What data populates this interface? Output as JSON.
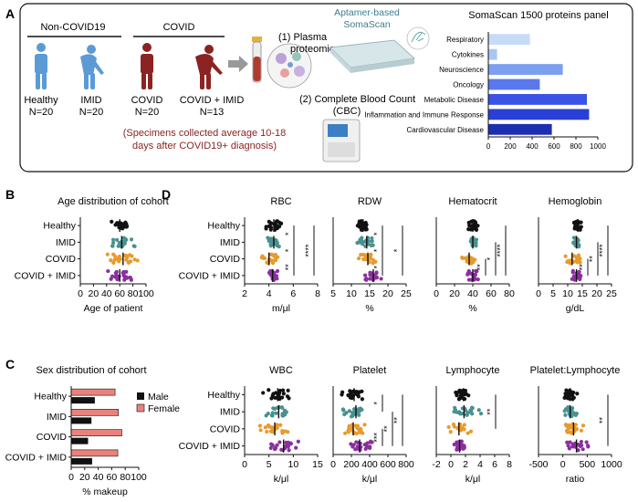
{
  "panel_a": {
    "label": "A",
    "non_covid_header": "Non-COVID19",
    "covid_header": "COVID",
    "groups": [
      {
        "name": "Healthy",
        "n": "N=20",
        "color": "#5b9bd5"
      },
      {
        "name": "IMID",
        "n": "N=20",
        "color": "#5b9bd5"
      },
      {
        "name": "COVID",
        "n": "N=20",
        "color": "#8b2323"
      },
      {
        "name": "COVID + IMID",
        "n": "N=13",
        "color": "#8b2323"
      }
    ],
    "specimen_note_1": "(Specimens collected average 10-18",
    "specimen_note_2": "days after COVID19+ diagnosis)",
    "step1_line1": "(1) Plasma",
    "step1_line2": "proteomics",
    "step2_line1": "(2) Complete Blood Count",
    "step2_line2": "(CBC)",
    "aptamer_line1": "Aptamer-based",
    "aptamer_line2": "SomaScan",
    "accent_red": "#8b2323",
    "accent_blue": "#5b9bd5"
  },
  "panel_b": {
    "label": "B"
  },
  "panel_c": {
    "label": "C"
  },
  "panel_d": {
    "label": "D"
  },
  "chart_data": [
    {
      "id": "somascan",
      "type": "bar",
      "orientation": "horizontal",
      "title": "SomaScan 1500 proteins panel",
      "categories": [
        "Respiratory",
        "Cytokines",
        "Neuroscience",
        "Oncology",
        "Metabolic Disease",
        "Inflammation and Immune Response",
        "Cardiovascular Disease"
      ],
      "values": [
        380,
        80,
        680,
        470,
        900,
        920,
        580
      ],
      "colors": [
        "#c6dbf5",
        "#a9c6f2",
        "#7d9ff0",
        "#5a78ee",
        "#3b52e6",
        "#2a3fd6",
        "#1c2fb0"
      ],
      "xlim": [
        0,
        1000
      ],
      "xticks": [
        "0",
        "200",
        "400",
        "600",
        "800",
        "1000"
      ]
    },
    {
      "id": "age",
      "type": "scatter",
      "title": "Age distribution of cohort",
      "xlabel": "Age of patient",
      "categories": [
        "Healthy",
        "IMID",
        "COVID",
        "COVID + IMID"
      ],
      "means": [
        60,
        63,
        65,
        60
      ],
      "spreads": [
        18,
        20,
        24,
        23
      ],
      "xlim": [
        0,
        100
      ],
      "xticks": [
        "0",
        "20",
        "40",
        "60",
        "80",
        "100"
      ],
      "colors": [
        "#111111",
        "#4a9090",
        "#e89a2c",
        "#8a2f9e"
      ]
    },
    {
      "id": "sex",
      "type": "bar",
      "orientation": "horizontal",
      "title": "Sex distribution of cohort",
      "xlabel": "% makeup",
      "categories": [
        "Healthy",
        "IMID",
        "COVID",
        "COVID + IMID"
      ],
      "series": [
        {
          "name": "Male",
          "values": [
            35,
            30,
            25,
            31
          ],
          "color": "#111111"
        },
        {
          "name": "Female",
          "values": [
            65,
            70,
            75,
            69
          ],
          "color": "#e9827c"
        }
      ],
      "xlim": [
        0,
        100
      ],
      "xticks": [
        "0",
        "20",
        "40",
        "60",
        "80",
        "100"
      ]
    },
    {
      "id": "rbc",
      "type": "scatter",
      "title": "RBC",
      "xlabel": "m/μl",
      "categories": [
        "Healthy",
        "IMID",
        "COVID",
        "COVID + IMID"
      ],
      "means": [
        4.4,
        4.4,
        4.0,
        4.3
      ],
      "spreads": [
        0.6,
        0.6,
        0.9,
        0.6
      ],
      "xlim": [
        2,
        8
      ],
      "xticks": [
        "2",
        "4",
        "6",
        "8"
      ],
      "significance": [
        {
          "from": 0,
          "to": 1,
          "label": "*"
        },
        {
          "from": 1,
          "to": 2,
          "label": "*"
        },
        {
          "from": 0,
          "to": 3,
          "label": "****"
        },
        {
          "from": 2,
          "to": 3,
          "label": "**"
        }
      ]
    },
    {
      "id": "rdw",
      "type": "scatter",
      "title": "RDW",
      "xlabel": "%",
      "categories": [
        "Healthy",
        "IMID",
        "COVID",
        "COVID + IMID"
      ],
      "means": [
        13.2,
        14.2,
        14.5,
        16.0
      ],
      "spreads": [
        1.5,
        2.5,
        2.5,
        3.0
      ],
      "xlim": [
        5,
        25
      ],
      "xticks": [
        "5",
        "10",
        "15",
        "20",
        "25"
      ],
      "significance": [
        {
          "from": 0,
          "to": 1,
          "label": "*"
        },
        {
          "from": 1,
          "to": 2,
          "label": "*"
        },
        {
          "from": 2,
          "to": 3,
          "label": "*"
        },
        {
          "from": 0,
          "to": 3,
          "label": "*"
        }
      ]
    },
    {
      "id": "hematocrit",
      "type": "scatter",
      "title": "Hematocrit",
      "xlabel": "%",
      "categories": [
        "Healthy",
        "IMID",
        "COVID",
        "COVID + IMID"
      ],
      "means": [
        40,
        40,
        36,
        40
      ],
      "spreads": [
        6,
        5,
        10,
        6
      ],
      "xlim": [
        0,
        80
      ],
      "xticks": [
        "0",
        "20",
        "40",
        "60",
        "80"
      ],
      "significance": [
        {
          "from": 2,
          "to": 3,
          "label": "**"
        },
        {
          "from": 1,
          "to": 3,
          "label": "*"
        },
        {
          "from": 0,
          "to": 3,
          "label": "****"
        }
      ]
    },
    {
      "id": "hemoglobin",
      "type": "scatter",
      "title": "Hemoglobin",
      "xlabel": "g/dL",
      "categories": [
        "Healthy",
        "IMID",
        "COVID",
        "COVID + IMID"
      ],
      "means": [
        13.5,
        13.0,
        11.5,
        13.0
      ],
      "spreads": [
        2,
        2,
        4,
        3
      ],
      "xlim": [
        0,
        25
      ],
      "xticks": [
        "0",
        "5",
        "10",
        "15",
        "20",
        "25"
      ],
      "significance": [
        {
          "from": 2,
          "to": 3,
          "label": "**"
        },
        {
          "from": 1,
          "to": 3,
          "label": "**"
        },
        {
          "from": 0,
          "to": 3,
          "label": "****"
        }
      ]
    },
    {
      "id": "wbc",
      "type": "scatter",
      "title": "WBC",
      "xlabel": "k/μl",
      "categories": [
        "Healthy",
        "IMID",
        "COVID",
        "COVID + IMID"
      ],
      "means": [
        6.8,
        7.0,
        6.2,
        8.0
      ],
      "spreads": [
        3,
        3.5,
        3.5,
        4
      ],
      "xlim": [
        0,
        15
      ],
      "xticks": [
        "0",
        "5",
        "10",
        "15"
      ],
      "significance": []
    },
    {
      "id": "platelet",
      "type": "scatter",
      "title": "Platelet",
      "xlabel": "k/μl",
      "categories": [
        "Healthy",
        "IMID",
        "COVID",
        "COVID + IMID"
      ],
      "means": [
        230,
        250,
        220,
        290
      ],
      "spreads": [
        150,
        180,
        150,
        180
      ],
      "xlim": [
        0,
        800
      ],
      "xticks": [
        "0",
        "200",
        "400",
        "600",
        "800"
      ],
      "significance": [
        {
          "from": 0,
          "to": 1,
          "label": "*"
        },
        {
          "from": 1,
          "to": 3,
          "label": "**"
        },
        {
          "from": 2,
          "to": 3,
          "label": "***"
        },
        {
          "from": 0,
          "to": 3,
          "label": "**"
        }
      ]
    },
    {
      "id": "lymphocyte",
      "type": "scatter",
      "title": "Lymphocyte",
      "xlabel": "k/μl",
      "categories": [
        "Healthy",
        "IMID",
        "COVID",
        "COVID + IMID"
      ],
      "means": [
        1.7,
        1.8,
        1.1,
        1.2
      ],
      "spreads": [
        1.2,
        2.5,
        1.5,
        1.5
      ],
      "xlim": [
        -2,
        8
      ],
      "xticks": [
        "-2",
        "0",
        "2",
        "4",
        "6",
        "8"
      ],
      "significance": [
        {
          "from": 0,
          "to": 2,
          "label": "**"
        }
      ]
    },
    {
      "id": "ratio",
      "type": "scatter",
      "title": "Platelet:Lymphocyte",
      "xlabel": "ratio",
      "categories": [
        "Healthy",
        "IMID",
        "COVID",
        "COVID + IMID"
      ],
      "means": [
        150,
        150,
        220,
        280
      ],
      "spreads": [
        150,
        150,
        250,
        400
      ],
      "xlim": [
        -500,
        1000
      ],
      "xticks": [
        "-500",
        "0",
        "500",
        "1000"
      ],
      "significance": [
        {
          "from": 0,
          "to": 3,
          "label": "**"
        }
      ]
    }
  ]
}
